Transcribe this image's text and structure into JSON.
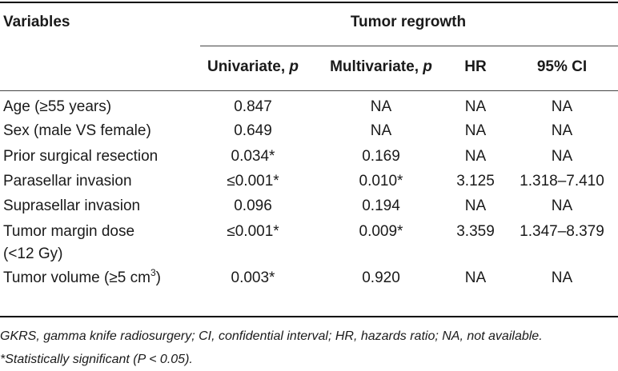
{
  "table": {
    "header": {
      "variables": "Variables",
      "group": "Tumor regrowth",
      "columns": [
        {
          "name": "Univariate, ",
          "italic": "p"
        },
        {
          "name": "Multivariate, ",
          "italic": "p"
        },
        {
          "name": "HR",
          "italic": ""
        },
        {
          "name": "95% CI",
          "italic": ""
        }
      ]
    },
    "rows": [
      {
        "label": "Age (≥55 years)",
        "label2": "",
        "sup": "",
        "suffix": "",
        "values": [
          "0.847",
          "NA",
          "NA",
          "NA"
        ]
      },
      {
        "label": "Sex (male VS female)",
        "label2": "",
        "sup": "",
        "suffix": "",
        "values": [
          "0.649",
          "NA",
          "NA",
          "NA"
        ]
      },
      {
        "label": "Prior surgical resection",
        "label2": "",
        "sup": "",
        "suffix": "",
        "values": [
          "0.034*",
          "0.169",
          "NA",
          "NA"
        ]
      },
      {
        "label": "Parasellar invasion",
        "label2": "",
        "sup": "",
        "suffix": "",
        "values": [
          "≤0.001*",
          "0.010*",
          "3.125",
          "1.318–7.410"
        ]
      },
      {
        "label": "Suprasellar invasion",
        "label2": "",
        "sup": "",
        "suffix": "",
        "values": [
          "0.096",
          "0.194",
          "NA",
          "NA"
        ]
      },
      {
        "label": "Tumor margin dose",
        "label2": "(<12 Gy)",
        "sup": "",
        "suffix": "",
        "values": [
          "≤0.001*",
          "0.009*",
          "3.359",
          "1.347–8.379"
        ]
      },
      {
        "label": "Tumor volume (≥5 cm",
        "label2": "",
        "sup": "3",
        "suffix": ")",
        "values": [
          "0.003*",
          "0.920",
          "NA",
          "NA"
        ]
      }
    ]
  },
  "footnotes": [
    "GKRS, gamma knife radiosurgery; CI, confidential interval; HR, hazards ratio; NA, not available.",
    "*Statistically significant (P < 0.05)."
  ]
}
